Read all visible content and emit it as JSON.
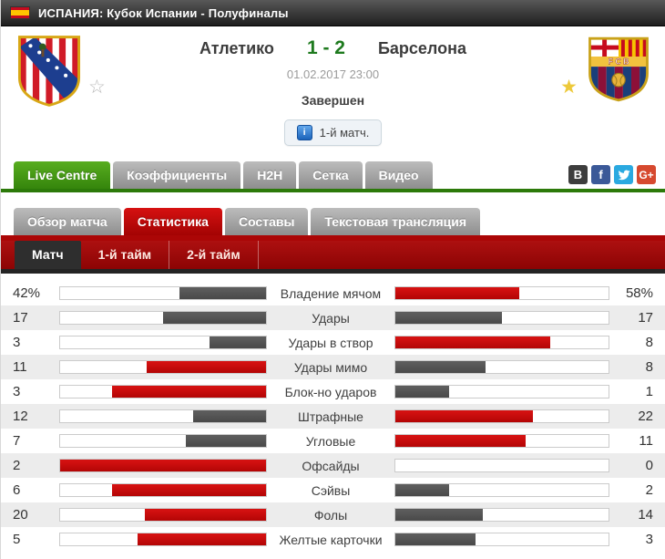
{
  "league_bar": {
    "title": "ИСПАНИЯ: Кубок Испании - Полуфиналы"
  },
  "header": {
    "home_team": "Атлетико",
    "score": "1 - 2",
    "away_team": "Барселона",
    "datetime": "01.02.2017 23:00",
    "status": "Завершен",
    "note": "1-й матч.",
    "info_glyph": "i",
    "star_home": "☆",
    "star_away": "★",
    "score_color": "#1e7a1e"
  },
  "main_tabs": [
    {
      "label": "Live Centre",
      "active": true
    },
    {
      "label": "Коэффициенты"
    },
    {
      "label": "H2H"
    },
    {
      "label": "Сетка"
    },
    {
      "label": "Видео"
    }
  ],
  "social_icons": [
    {
      "name": "vk",
      "glyph": "B",
      "color": "#3d3d3d"
    },
    {
      "name": "facebook",
      "glyph": "f",
      "color": "#3b5998"
    },
    {
      "name": "twitter",
      "glyph": "twitter-bird",
      "color": "#2aa9e0"
    },
    {
      "name": "gplus",
      "glyph": "G+",
      "color": "#d6492f"
    }
  ],
  "match_tabs": [
    {
      "label": "Обзор матча"
    },
    {
      "label": "Статистика",
      "active": true
    },
    {
      "label": "Составы"
    },
    {
      "label": "Текстовая трансляция"
    }
  ],
  "period_tabs": [
    {
      "label": "Матч",
      "active": true
    },
    {
      "label": "1-й тайм"
    },
    {
      "label": "2-й тайм"
    }
  ],
  "stats": {
    "type": "bar",
    "bar_colors": {
      "leading": "#c80a0a",
      "trailing": "#4f4f4f"
    },
    "rows": [
      {
        "left": "42%",
        "label": "Владение мячом",
        "right": "58%",
        "left_pct": 42,
        "right_pct": 58,
        "left_color": "gray",
        "right_color": "red"
      },
      {
        "left": "17",
        "label": "Удары",
        "right": "17",
        "left_pct": 50,
        "right_pct": 50,
        "left_color": "gray",
        "right_color": "gray"
      },
      {
        "left": "3",
        "label": "Удары в створ",
        "right": "8",
        "left_pct": 27.3,
        "right_pct": 72.7,
        "left_color": "gray",
        "right_color": "red"
      },
      {
        "left": "11",
        "label": "Удары мимо",
        "right": "8",
        "left_pct": 57.9,
        "right_pct": 42.1,
        "left_color": "red",
        "right_color": "gray"
      },
      {
        "left": "3",
        "label": "Блок-но ударов",
        "right": "1",
        "left_pct": 75,
        "right_pct": 25,
        "left_color": "red",
        "right_color": "gray"
      },
      {
        "left": "12",
        "label": "Штрафные",
        "right": "22",
        "left_pct": 35.3,
        "right_pct": 64.7,
        "left_color": "gray",
        "right_color": "red"
      },
      {
        "left": "7",
        "label": "Угловые",
        "right": "11",
        "left_pct": 38.9,
        "right_pct": 61.1,
        "left_color": "gray",
        "right_color": "red"
      },
      {
        "left": "2",
        "label": "Офсайды",
        "right": "0",
        "left_pct": 100,
        "right_pct": 0,
        "left_color": "red",
        "right_color": "gray"
      },
      {
        "left": "6",
        "label": "Сэйвы",
        "right": "2",
        "left_pct": 75,
        "right_pct": 25,
        "left_color": "red",
        "right_color": "gray"
      },
      {
        "left": "20",
        "label": "Фолы",
        "right": "14",
        "left_pct": 58.8,
        "right_pct": 41.2,
        "left_color": "red",
        "right_color": "gray"
      },
      {
        "left": "5",
        "label": "Желтые карточки",
        "right": "3",
        "left_pct": 62.5,
        "right_pct": 37.5,
        "left_color": "red",
        "right_color": "gray"
      }
    ]
  }
}
